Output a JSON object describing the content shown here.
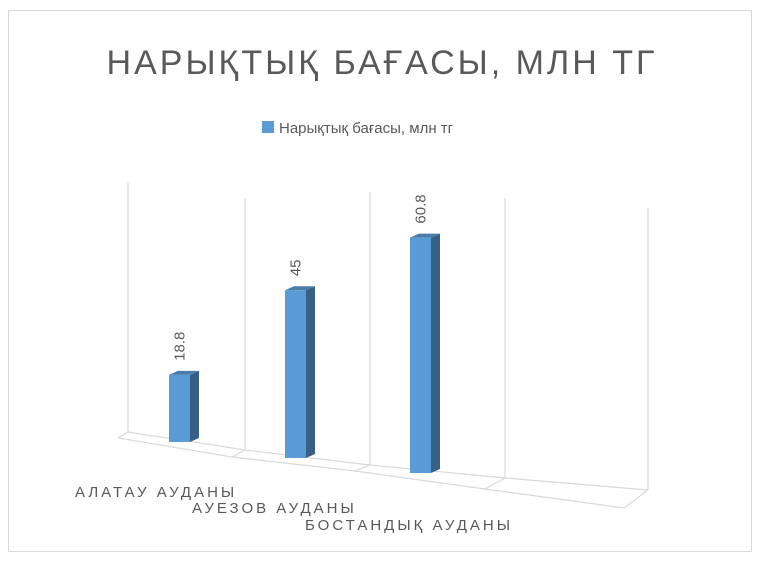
{
  "chart_data": {
    "type": "bar3d",
    "title": "НАРЫҚТЫҚ БАҒАСЫ, МЛН ТГ",
    "categories": [
      "АЛАТАУ АУДАНЫ",
      "АУЕЗОВ АУДАНЫ",
      "БОСТАНДЫҚ АУДАНЫ"
    ],
    "series": [
      {
        "name": "Нарықтық бағасы, млн тг",
        "color": "#5b9bd5",
        "values": [
          18.8,
          45,
          60.8
        ]
      }
    ],
    "ylim": [
      0,
      70
    ],
    "legend": "top"
  }
}
